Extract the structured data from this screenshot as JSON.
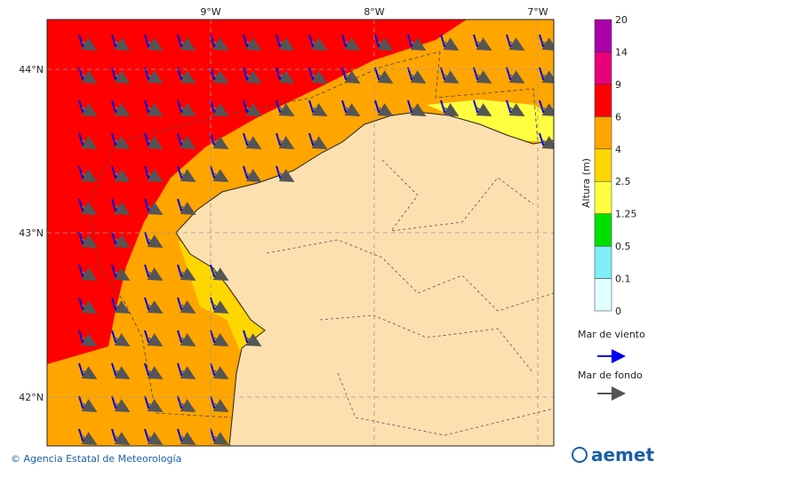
{
  "map": {
    "lon_labels": [
      "9°W",
      "8°W",
      "7°W"
    ],
    "lat_labels": [
      "44°N",
      "43°N",
      "42°N"
    ]
  },
  "colorbar": {
    "label": "Altura (m)",
    "levels": [
      "0",
      "0.1",
      "0.5",
      "1.25",
      "2.5",
      "4",
      "6",
      "9",
      "14",
      "20"
    ],
    "colors": [
      "#e0ffff",
      "#80eef8",
      "#00e000",
      "#ffff40",
      "#ffd700",
      "#ffa500",
      "#ff0000",
      "#e8007a",
      "#aa00aa"
    ]
  },
  "legend": {
    "wind_sea": "Mar de viento",
    "swell": "Mar de fondo"
  },
  "footer": {
    "credit": "© Agencia Estatal de Meteorología",
    "logo": "aemet"
  }
}
